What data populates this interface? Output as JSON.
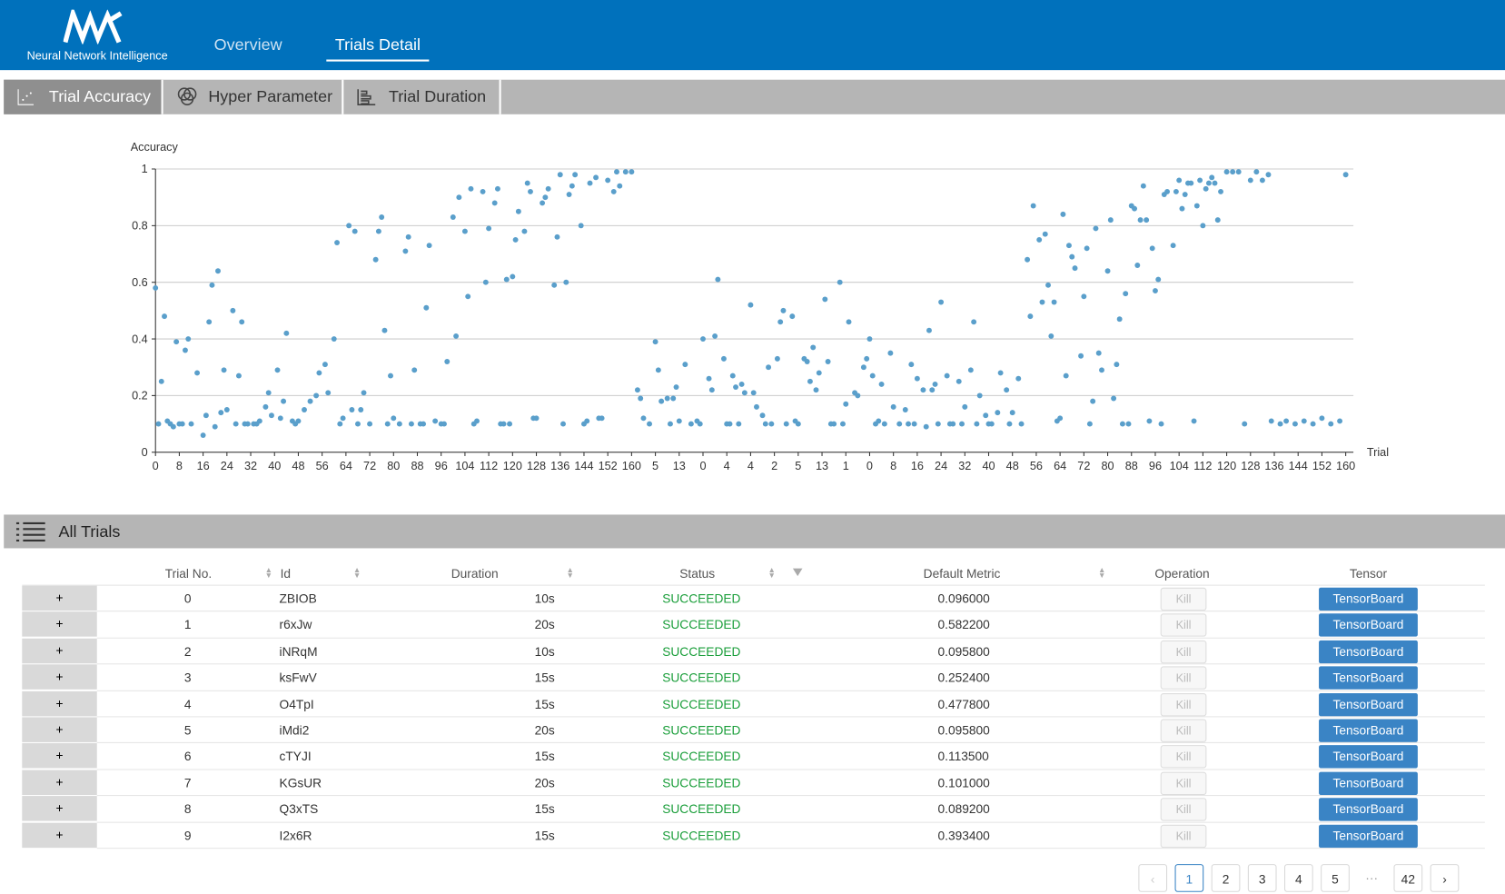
{
  "header": {
    "logo_text": "Neural Network Intelligence",
    "nav": [
      "Overview",
      "Trials Detail"
    ]
  },
  "tabs": [
    "Trial Accuracy",
    "Hyper Parameter",
    "Trial Duration"
  ],
  "chart_data": {
    "type": "scatter",
    "y_label": "Accuracy",
    "x_label": "Trial",
    "color": "#5a9fcb",
    "grid": true,
    "xlim": [
      0,
      400
    ],
    "ylim": [
      0,
      1
    ],
    "yticks": [
      0,
      0.2,
      0.4,
      0.6,
      0.8,
      1
    ],
    "xticks": [
      0,
      8,
      16,
      24,
      32,
      40,
      48,
      56,
      64,
      72,
      80,
      88,
      96,
      104,
      112,
      120,
      128,
      136,
      144,
      152,
      160,
      {
        "value": 168,
        "label": "5"
      },
      {
        "value": 176,
        "label": "13"
      },
      {
        "value": 184,
        "label": "0"
      },
      {
        "value": 192,
        "label": "4"
      },
      {
        "value": 200,
        "label": "4"
      },
      {
        "value": 208,
        "label": "2"
      },
      {
        "value": 216,
        "label": "5"
      },
      {
        "value": 224,
        "label": "13"
      },
      {
        "value": 232,
        "label": "1"
      },
      {
        "value": 240,
        "label": "0"
      },
      {
        "value": 248,
        "label": "8"
      },
      {
        "value": 256,
        "label": "16"
      },
      {
        "value": 264,
        "label": "24"
      },
      {
        "value": 272,
        "label": "32"
      },
      {
        "value": 280,
        "label": "40"
      },
      {
        "value": 288,
        "label": "48"
      },
      {
        "value": 296,
        "label": "56"
      },
      {
        "value": 304,
        "label": "64"
      },
      {
        "value": 312,
        "label": "72"
      },
      {
        "value": 320,
        "label": "80"
      },
      {
        "value": 328,
        "label": "88"
      },
      {
        "value": 336,
        "label": "96"
      },
      {
        "value": 344,
        "label": "104"
      },
      {
        "value": 352,
        "label": "112"
      },
      {
        "value": 360,
        "label": "120"
      },
      {
        "value": 368,
        "label": "128"
      },
      {
        "value": 376,
        "label": "136"
      },
      {
        "value": 384,
        "label": "144"
      },
      {
        "value": 392,
        "label": "152"
      },
      {
        "value": 400,
        "label": "160"
      }
    ],
    "x": [
      0,
      1,
      2,
      3,
      4,
      5,
      7,
      8,
      10,
      11,
      12,
      14,
      16,
      17,
      18,
      19,
      20,
      21,
      22,
      23,
      24,
      26,
      28,
      29,
      31,
      33,
      35,
      37,
      38,
      39,
      41,
      42,
      43,
      44,
      46,
      48,
      50,
      52,
      54,
      55,
      57,
      58,
      60,
      61,
      63,
      65,
      66,
      67,
      69,
      70,
      72,
      74,
      75,
      76,
      77,
      79,
      80,
      82,
      84,
      85,
      87,
      89,
      91,
      92,
      94,
      96,
      98,
      100,
      101,
      102,
      104,
      105,
      106,
      108,
      110,
      111,
      112,
      114,
      115,
      117,
      118,
      120,
      121,
      122,
      124,
      125,
      126,
      128,
      130,
      131,
      132,
      134,
      135,
      136,
      138,
      139,
      140,
      141,
      143,
      145,
      146,
      148,
      150,
      152,
      154,
      155,
      156,
      158,
      160,
      162,
      163,
      164,
      166,
      168,
      169,
      170,
      172,
      174,
      175,
      176,
      178,
      180,
      182,
      184,
      186,
      187,
      188,
      189,
      191,
      192,
      194,
      195,
      197,
      198,
      200,
      201,
      202,
      204,
      206,
      207,
      209,
      210,
      211,
      212,
      214,
      216,
      218,
      219,
      220,
      221,
      222,
      223,
      225,
      226,
      228,
      230,
      232,
      233,
      235,
      236,
      238,
      239,
      240,
      241,
      242,
      244,
      245,
      247,
      248,
      250,
      252,
      254,
      255,
      256,
      258,
      259,
      260,
      261,
      262,
      264,
      266,
      268,
      270,
      272,
      274,
      275,
      277,
      279,
      281,
      283,
      284,
      286,
      288,
      290,
      291,
      293,
      294,
      295,
      297,
      298,
      299,
      300,
      301,
      302,
      304,
      305,
      306,
      307,
      308,
      309,
      311,
      312,
      313,
      314,
      315,
      316,
      317,
      318,
      320,
      321,
      322,
      323,
      324,
      325,
      326,
      328,
      329,
      330,
      331,
      332,
      333,
      335,
      336,
      337,
      339,
      340,
      342,
      343,
      344,
      345,
      346,
      347,
      348,
      350,
      351,
      352,
      353,
      354,
      355,
      356,
      357,
      358,
      360,
      362,
      364,
      366,
      368,
      370,
      372,
      374,
      375,
      378,
      380,
      383,
      386,
      389,
      392,
      395,
      398,
      400,
      6,
      9,
      27,
      30,
      34,
      47,
      62,
      68,
      78,
      86,
      90,
      97,
      107,
      116,
      119,
      127,
      137,
      144,
      149,
      173,
      183,
      193,
      196,
      205,
      215,
      227,
      231,
      243,
      253,
      263,
      267,
      271,
      276,
      280,
      287,
      303,
      327,
      334,
      338,
      349
    ],
    "values": [
      0.58,
      0.1,
      0.25,
      0.48,
      0.11,
      0.1,
      0.39,
      0.1,
      0.36,
      0.4,
      0.1,
      0.28,
      0.06,
      0.13,
      0.46,
      0.59,
      0.09,
      0.64,
      0.14,
      0.29,
      0.15,
      0.5,
      0.27,
      0.46,
      0.1,
      0.1,
      0.11,
      0.16,
      0.21,
      0.13,
      0.29,
      0.12,
      0.18,
      0.42,
      0.11,
      0.11,
      0.15,
      0.18,
      0.2,
      0.28,
      0.31,
      0.21,
      0.4,
      0.74,
      0.12,
      0.8,
      0.15,
      0.78,
      0.15,
      0.21,
      0.1,
      0.68,
      0.78,
      0.83,
      0.43,
      0.27,
      0.12,
      0.1,
      0.71,
      0.76,
      0.29,
      0.1,
      0.51,
      0.73,
      0.11,
      0.1,
      0.32,
      0.83,
      0.41,
      0.9,
      0.78,
      0.55,
      0.93,
      0.11,
      0.92,
      0.6,
      0.79,
      0.88,
      0.93,
      0.1,
      0.61,
      0.62,
      0.75,
      0.85,
      0.78,
      0.95,
      0.92,
      0.12,
      0.88,
      0.9,
      0.93,
      0.59,
      0.76,
      0.98,
      0.6,
      0.91,
      0.94,
      0.98,
      0.8,
      0.11,
      0.95,
      0.97,
      0.12,
      0.96,
      0.92,
      0.99,
      0.94,
      0.99,
      0.99,
      0.22,
      0.19,
      0.12,
      0.1,
      0.39,
      0.29,
      0.18,
      0.19,
      0.19,
      0.23,
      0.11,
      0.31,
      0.1,
      0.11,
      0.4,
      0.26,
      0.22,
      0.41,
      0.61,
      0.33,
      0.1,
      0.27,
      0.23,
      0.24,
      0.21,
      0.52,
      0.21,
      0.16,
      0.13,
      0.3,
      0.1,
      0.33,
      0.46,
      0.5,
      0.1,
      0.48,
      0.1,
      0.33,
      0.32,
      0.25,
      0.37,
      0.22,
      0.28,
      0.54,
      0.32,
      0.1,
      0.6,
      0.17,
      0.46,
      0.21,
      0.2,
      0.3,
      0.33,
      0.4,
      0.27,
      0.1,
      0.24,
      0.1,
      0.35,
      0.16,
      0.1,
      0.15,
      0.31,
      0.1,
      0.26,
      0.22,
      0.09,
      0.43,
      0.22,
      0.24,
      0.53,
      0.27,
      0.1,
      0.25,
      0.16,
      0.29,
      0.46,
      0.2,
      0.13,
      0.1,
      0.14,
      0.28,
      0.22,
      0.14,
      0.26,
      0.1,
      0.68,
      0.48,
      0.87,
      0.75,
      0.53,
      0.77,
      0.59,
      0.41,
      0.53,
      0.12,
      0.84,
      0.27,
      0.73,
      0.69,
      0.65,
      0.34,
      0.55,
      0.72,
      0.1,
      0.18,
      0.79,
      0.35,
      0.29,
      0.64,
      0.82,
      0.19,
      0.31,
      0.47,
      0.1,
      0.56,
      0.87,
      0.86,
      0.66,
      0.82,
      0.94,
      0.82,
      0.72,
      0.57,
      0.61,
      0.91,
      0.92,
      0.73,
      0.92,
      0.96,
      0.86,
      0.91,
      0.95,
      0.95,
      0.87,
      0.96,
      0.8,
      0.93,
      0.95,
      0.97,
      0.95,
      0.82,
      0.92,
      0.99,
      0.99,
      0.99,
      0.1,
      0.96,
      0.99,
      0.96,
      0.98,
      0.11,
      0.1,
      0.11,
      0.1,
      0.11,
      0.1,
      0.12,
      0.1,
      0.11,
      0.98,
      0.09,
      0.1,
      0.1,
      0.1,
      0.1,
      0.1,
      0.1,
      0.1,
      0.1,
      0.1,
      0.1,
      0.1,
      0.1,
      0.1,
      0.1,
      0.12,
      0.1,
      0.1,
      0.12,
      0.1,
      0.1,
      0.1,
      0.1,
      0.1,
      0.11,
      0.1,
      0.1,
      0.11,
      0.1,
      0.1,
      0.1,
      0.1,
      0.1,
      0.1,
      0.1,
      0.11,
      0.1,
      0.11,
      0.1,
      0.11
    ]
  },
  "table": {
    "title": "All Trials",
    "columns": [
      "Trial No.",
      "Id",
      "Duration",
      "Status",
      "Default Metric",
      "Operation",
      "Tensor"
    ],
    "expand_symbol": "+",
    "operation_label": "Kill",
    "tensor_label": "TensorBoard",
    "rows": [
      [
        0,
        "ZBIOB",
        "10s",
        "SUCCEEDED",
        "0.096000"
      ],
      [
        1,
        "r6xJw",
        "20s",
        "SUCCEEDED",
        "0.582200"
      ],
      [
        2,
        "iNRqM",
        "10s",
        "SUCCEEDED",
        "0.095800"
      ],
      [
        3,
        "ksFwV",
        "15s",
        "SUCCEEDED",
        "0.252400"
      ],
      [
        4,
        "O4TpI",
        "15s",
        "SUCCEEDED",
        "0.477800"
      ],
      [
        5,
        "iMdi2",
        "20s",
        "SUCCEEDED",
        "0.095800"
      ],
      [
        6,
        "cTYJI",
        "15s",
        "SUCCEEDED",
        "0.113500"
      ],
      [
        7,
        "KGsUR",
        "20s",
        "SUCCEEDED",
        "0.101000"
      ],
      [
        8,
        "Q3xTS",
        "15s",
        "SUCCEEDED",
        "0.089200"
      ],
      [
        9,
        "I2x6R",
        "15s",
        "SUCCEEDED",
        "0.393400"
      ]
    ]
  },
  "pagination": {
    "pages": [
      "1",
      "2",
      "3",
      "4",
      "5",
      "···",
      "42"
    ]
  }
}
